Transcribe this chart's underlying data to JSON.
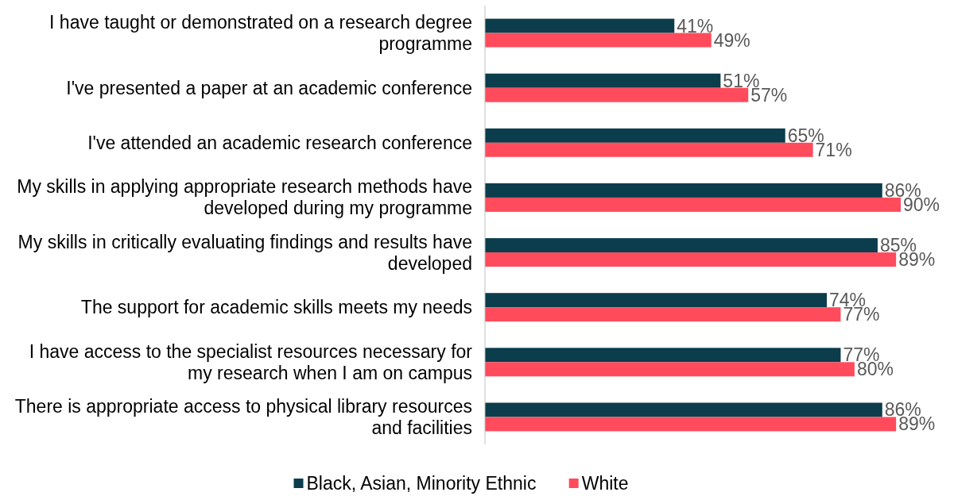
{
  "chart_data": {
    "type": "bar",
    "orientation": "horizontal",
    "categories": [
      "I have taught or demonstrated on a research degree programme",
      "I've presented a paper at an academic conference",
      "I've attended an academic research conference",
      "My skills in applying appropriate research methods have developed during my programme",
      "My skills in critically evaluating findings and results have developed",
      "The support for academic skills meets my needs",
      "I have access to the specialist resources necessary for my research when I am on campus",
      "There is appropriate access to physical library resources and facilities"
    ],
    "series": [
      {
        "name": "Black, Asian, Minority Ethnic",
        "color": "#0b3d4c",
        "values": [
          41,
          51,
          65,
          86,
          85,
          74,
          77,
          86
        ],
        "value_labels": [
          "41%",
          "51%",
          "65%",
          "86%",
          "85%",
          "74%",
          "77%",
          "86%"
        ]
      },
      {
        "name": "White",
        "color": "#ff4b5c",
        "values": [
          49,
          57,
          71,
          90,
          89,
          77,
          80,
          89
        ],
        "value_labels": [
          "49%",
          "57%",
          "71%",
          "90%",
          "89%",
          "77%",
          "80%",
          "89%"
        ]
      }
    ],
    "tick_labels": "y",
    "legend": "bottom"
  }
}
